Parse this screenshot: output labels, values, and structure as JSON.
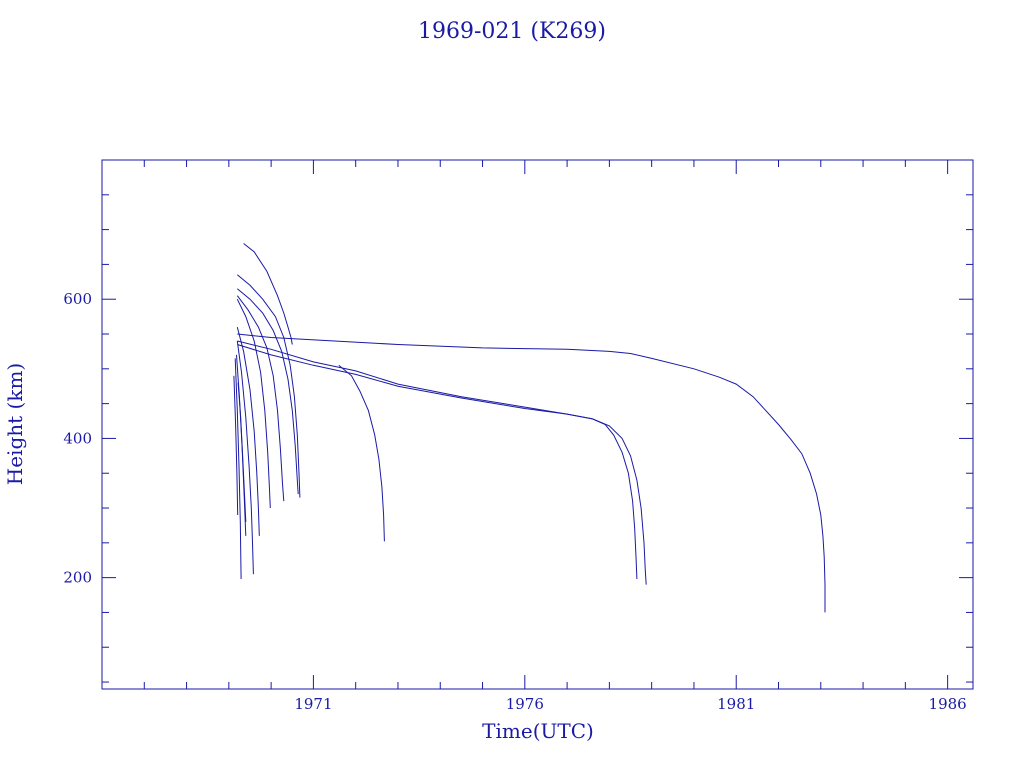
{
  "chart_data": {
    "type": "line",
    "title": "1969-021 (K269)",
    "xlabel": "Time(UTC)",
    "ylabel": "Height (km)",
    "xlim": [
      1966.0,
      1986.6
    ],
    "ylim": [
      40,
      800
    ],
    "x_major_ticks": [
      1971,
      1976,
      1981,
      1986
    ],
    "x_tick_labels": [
      "1971",
      "1976",
      "1981",
      "1986"
    ],
    "y_major_ticks": [
      200,
      400,
      600
    ],
    "y_tick_labels": [
      "200",
      "400",
      "600"
    ],
    "x_minor_step": 1,
    "y_minor_step": 50,
    "grid": false,
    "colors": {
      "ink": "#1a1aa6"
    },
    "series": [
      {
        "x": [
          1969.35,
          1969.6,
          1969.9,
          1970.15,
          1970.3,
          1970.4,
          1970.47,
          1970.5
        ],
        "y": [
          680,
          668,
          640,
          605,
          580,
          560,
          545,
          535
        ]
      },
      {
        "x": [
          1969.2,
          1970.0,
          1971.5,
          1973.0,
          1975.0,
          1977.0,
          1978.0,
          1978.5,
          1979.0,
          1980.0,
          1980.6,
          1981.0,
          1981.4,
          1981.7,
          1982.0,
          1982.3,
          1982.55,
          1982.75,
          1982.9,
          1983.0,
          1983.05,
          1983.08,
          1983.1,
          1983.1
        ],
        "y": [
          550,
          545,
          540,
          535,
          530,
          528,
          525,
          522,
          515,
          500,
          488,
          478,
          460,
          440,
          420,
          398,
          378,
          350,
          320,
          290,
          260,
          230,
          190,
          150
        ]
      },
      {
        "x": [
          1969.2,
          1970.0,
          1971.0,
          1972.0,
          1973.0,
          1974.5,
          1976.0,
          1977.0,
          1977.6,
          1978.0,
          1978.3,
          1978.5,
          1978.65,
          1978.75,
          1978.82,
          1978.85,
          1978.87
        ],
        "y": [
          540,
          528,
          510,
          497,
          478,
          460,
          445,
          435,
          428,
          418,
          400,
          375,
          340,
          300,
          250,
          210,
          190
        ]
      },
      {
        "x": [
          1969.2,
          1970.0,
          1971.0,
          1972.0,
          1973.0,
          1974.5,
          1976.0,
          1977.0,
          1977.6,
          1977.9,
          1978.1,
          1978.3,
          1978.45,
          1978.55,
          1978.6,
          1978.63,
          1978.65
        ],
        "y": [
          535,
          520,
          505,
          492,
          475,
          458,
          443,
          435,
          428,
          420,
          405,
          380,
          350,
          310,
          270,
          230,
          198
        ]
      },
      {
        "x": [
          1971.6,
          1971.9,
          1972.1,
          1972.3,
          1972.45,
          1972.55,
          1972.62,
          1972.66,
          1972.68
        ],
        "y": [
          505,
          490,
          468,
          440,
          405,
          370,
          330,
          290,
          252
        ]
      },
      {
        "x": [
          1969.2,
          1969.5,
          1969.8,
          1970.1,
          1970.3,
          1970.45,
          1970.55,
          1970.62,
          1970.66,
          1970.68
        ],
        "y": [
          635,
          620,
          600,
          575,
          545,
          505,
          460,
          405,
          350,
          315
        ]
      },
      {
        "x": [
          1969.2,
          1969.5,
          1969.8,
          1970.05,
          1970.25,
          1970.4,
          1970.5,
          1970.57,
          1970.62,
          1970.64
        ],
        "y": [
          615,
          600,
          580,
          555,
          525,
          485,
          440,
          390,
          340,
          320
        ]
      },
      {
        "x": [
          1969.2,
          1969.45,
          1969.7,
          1969.9,
          1970.05,
          1970.15,
          1970.22,
          1970.27,
          1970.3
        ],
        "y": [
          605,
          585,
          560,
          530,
          490,
          440,
          385,
          335,
          310
        ]
      },
      {
        "x": [
          1969.2,
          1969.4,
          1969.6,
          1969.75,
          1969.85,
          1969.92,
          1969.96,
          1969.98
        ],
        "y": [
          600,
          575,
          540,
          495,
          440,
          380,
          330,
          300
        ]
      },
      {
        "x": [
          1969.2,
          1969.35,
          1969.5,
          1969.6,
          1969.66,
          1969.7,
          1969.72
        ],
        "y": [
          560,
          525,
          470,
          410,
          350,
          300,
          260
        ]
      },
      {
        "x": [
          1969.2,
          1969.3,
          1969.4,
          1969.48,
          1969.53,
          1969.56,
          1969.58
        ],
        "y": [
          540,
          495,
          430,
          360,
          300,
          250,
          205
        ]
      },
      {
        "x": [
          1969.18,
          1969.25,
          1969.31,
          1969.36,
          1969.4
        ],
        "y": [
          520,
          460,
          390,
          320,
          260
        ]
      },
      {
        "x": [
          1969.15,
          1969.2,
          1969.24,
          1969.27,
          1969.29
        ],
        "y": [
          515,
          440,
          360,
          280,
          198
        ]
      },
      {
        "x": [
          1969.12,
          1969.16,
          1969.19,
          1969.21
        ],
        "y": [
          490,
          420,
          350,
          290
        ]
      },
      {
        "x": [
          1969.22,
          1969.28,
          1969.33,
          1969.37,
          1969.4
        ],
        "y": [
          480,
          430,
          370,
          320,
          280
        ]
      }
    ]
  }
}
